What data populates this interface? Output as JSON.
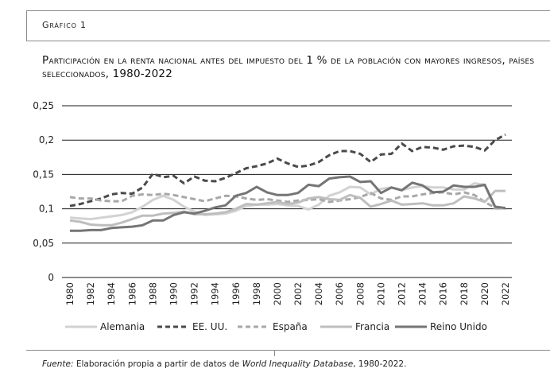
{
  "figure_label": "Gráfico 1",
  "title": "Participación en la renta nacional antes del impuesto del 1 % de la población con mayores ingresos, países seleccionados, 1980-2022",
  "source": {
    "prefix": "Fuente:",
    "text_before": " Elaboración propia a partir de datos de ",
    "database": "World Inequality Database",
    "text_after": ", 1980-2022."
  },
  "chart_data": {
    "type": "line",
    "title": "",
    "xlabel": "",
    "ylabel": "",
    "ylim": [
      0,
      0.25
    ],
    "yticks": [
      0,
      0.05,
      0.1,
      0.15,
      0.2,
      0.25
    ],
    "ytick_labels": [
      "0",
      "0,05",
      "0,1",
      "0,15",
      "0,2",
      "0,25"
    ],
    "xtick_labels": [
      "1980",
      "1982",
      "1984",
      "1986",
      "1988",
      "1990",
      "1992",
      "1994",
      "1996",
      "1998",
      "2000",
      "2002",
      "2004",
      "2006",
      "2008",
      "2010",
      "2012",
      "2014",
      "2016",
      "2018",
      "2020",
      "2022"
    ],
    "grid": "horizontal",
    "legend_position": "bottom",
    "x": [
      1980,
      1981,
      1982,
      1983,
      1984,
      1985,
      1986,
      1987,
      1988,
      1989,
      1990,
      1991,
      1992,
      1993,
      1994,
      1995,
      1996,
      1997,
      1998,
      1999,
      2000,
      2001,
      2002,
      2003,
      2004,
      2005,
      2006,
      2007,
      2008,
      2009,
      2010,
      2011,
      2012,
      2013,
      2014,
      2015,
      2016,
      2017,
      2018,
      2019,
      2020,
      2021,
      2022
    ],
    "series": [
      {
        "name": "Alemania",
        "color": "#d2d2d2",
        "dash": "solid",
        "width": 3,
        "values": [
          0.087,
          0.086,
          0.085,
          0.087,
          0.089,
          0.091,
          0.095,
          0.103,
          0.113,
          0.119,
          0.113,
          0.103,
          0.096,
          0.091,
          0.092,
          0.093,
          0.097,
          0.104,
          0.106,
          0.106,
          0.107,
          0.105,
          0.104,
          0.099,
          0.106,
          0.119,
          0.124,
          0.132,
          0.131,
          0.121,
          0.129,
          0.131,
          0.127,
          0.131,
          0.133,
          0.131,
          0.131,
          0.128,
          0.128,
          0.137,
          0.135,
          0.1,
          0.1
        ]
      },
      {
        "name": "EE. UU.",
        "color": "#4a4a4a",
        "dash": "dashed",
        "width": 3,
        "values": [
          0.104,
          0.107,
          0.111,
          0.115,
          0.121,
          0.123,
          0.122,
          0.131,
          0.151,
          0.146,
          0.148,
          0.137,
          0.147,
          0.141,
          0.14,
          0.145,
          0.152,
          0.159,
          0.162,
          0.166,
          0.173,
          0.166,
          0.161,
          0.163,
          0.168,
          0.178,
          0.184,
          0.184,
          0.18,
          0.168,
          0.179,
          0.18,
          0.195,
          0.184,
          0.19,
          0.189,
          0.186,
          0.191,
          0.192,
          0.19,
          0.185,
          0.2,
          0.208
        ]
      },
      {
        "name": "España",
        "color": "#a8a8a8",
        "dash": "dashed",
        "width": 3,
        "values": [
          0.117,
          0.115,
          0.115,
          0.112,
          0.111,
          0.111,
          0.119,
          0.121,
          0.12,
          0.122,
          0.12,
          0.117,
          0.114,
          0.111,
          0.115,
          0.119,
          0.118,
          0.115,
          0.113,
          0.114,
          0.112,
          0.11,
          0.112,
          0.113,
          0.114,
          0.11,
          0.112,
          0.114,
          0.117,
          0.123,
          0.115,
          0.113,
          0.118,
          0.118,
          0.121,
          0.123,
          0.124,
          0.121,
          0.124,
          0.12,
          0.11,
          0.101,
          0.101
        ]
      },
      {
        "name": "Francia",
        "color": "#bebebe",
        "dash": "solid",
        "width": 3,
        "values": [
          0.083,
          0.081,
          0.077,
          0.076,
          0.076,
          0.08,
          0.085,
          0.09,
          0.09,
          0.093,
          0.094,
          0.096,
          0.092,
          0.092,
          0.093,
          0.095,
          0.1,
          0.107,
          0.106,
          0.108,
          0.11,
          0.107,
          0.109,
          0.115,
          0.117,
          0.114,
          0.113,
          0.12,
          0.116,
          0.103,
          0.107,
          0.112,
          0.106,
          0.107,
          0.108,
          0.105,
          0.105,
          0.108,
          0.118,
          0.115,
          0.11,
          0.126,
          0.126
        ]
      },
      {
        "name": "Reino Unido",
        "color": "#757575",
        "dash": "solid",
        "width": 3,
        "values": [
          0.068,
          0.068,
          0.069,
          0.069,
          0.072,
          0.073,
          0.074,
          0.076,
          0.083,
          0.083,
          0.091,
          0.095,
          0.093,
          0.097,
          0.102,
          0.105,
          0.119,
          0.123,
          0.132,
          0.124,
          0.12,
          0.12,
          0.123,
          0.135,
          0.133,
          0.144,
          0.146,
          0.147,
          0.139,
          0.14,
          0.123,
          0.131,
          0.127,
          0.138,
          0.134,
          0.124,
          0.125,
          0.134,
          0.132,
          0.132,
          0.135,
          0.103,
          0.101
        ]
      }
    ]
  }
}
